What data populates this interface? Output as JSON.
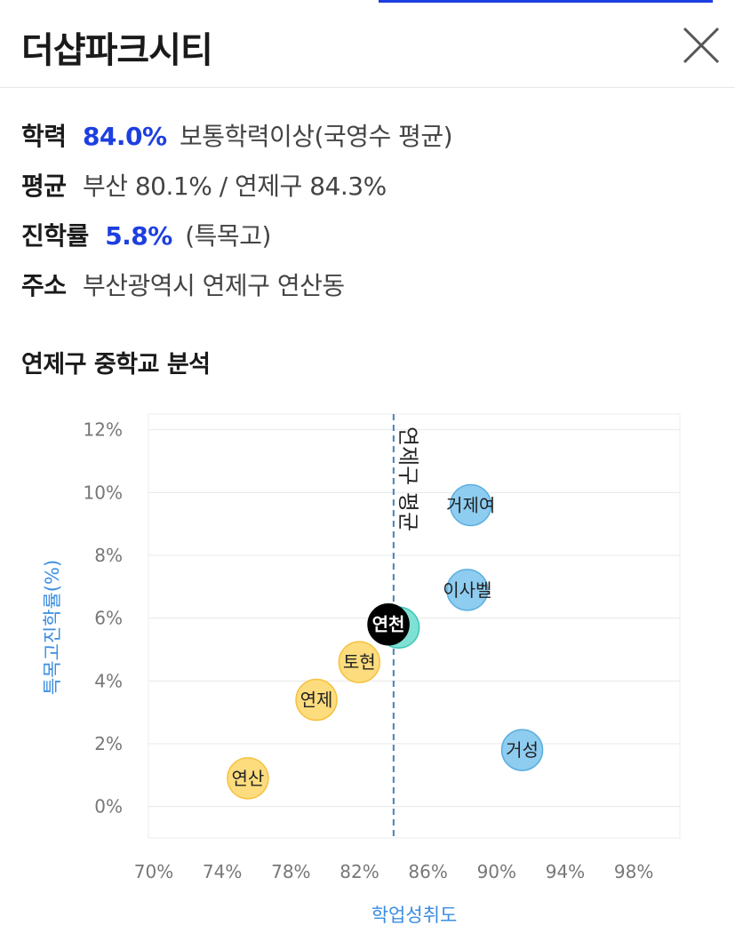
{
  "header": {
    "title": "더샵파크시티"
  },
  "info": {
    "achievement_key": "학력",
    "achievement_value": "84.0%",
    "achievement_desc": "보통학력이상(국영수 평균)",
    "average_key": "평균",
    "average_value": "부산 80.1% / 연제구 84.3%",
    "entrance_key": "진학률",
    "entrance_value": "5.8%",
    "entrance_desc": "(특목고)",
    "address_key": "주소",
    "address_value": "부산광역시 연제구 연산동"
  },
  "section": {
    "title": "연제구 중학교 분석"
  },
  "chart_data": {
    "type": "scatter",
    "xlabel": "학업성취도",
    "ylabel": "특목고진학률(%)",
    "xlim": [
      70,
      101
    ],
    "ylim": [
      -1,
      12.5
    ],
    "x_ticks": [
      "70%",
      "74%",
      "78%",
      "82%",
      "86%",
      "90%",
      "94%",
      "98%"
    ],
    "y_ticks": [
      "0%",
      "2%",
      "4%",
      "6%",
      "8%",
      "10%",
      "12%"
    ],
    "reference_line": {
      "x": 84.3,
      "label": "연제구 평균"
    },
    "points": [
      {
        "label": "연산",
        "x": 75.8,
        "y": 0.9,
        "color": "#fddc7e"
      },
      {
        "label": "연제",
        "x": 79.8,
        "y": 3.4,
        "color": "#fddc7e"
      },
      {
        "label": "토현",
        "x": 82.3,
        "y": 4.6,
        "color": "#fddc7e"
      },
      {
        "label": "",
        "x": 84.6,
        "y": 5.7,
        "color": "#7fe0d4"
      },
      {
        "label": "연천",
        "x": 84.0,
        "y": 5.8,
        "color": "#000000"
      },
      {
        "label": "이사벨",
        "x": 88.6,
        "y": 6.9,
        "color": "#8ecdf0"
      },
      {
        "label": "거제여",
        "x": 88.8,
        "y": 9.6,
        "color": "#8ecdf0"
      },
      {
        "label": "거성",
        "x": 91.8,
        "y": 1.8,
        "color": "#8ecdf0"
      }
    ]
  }
}
